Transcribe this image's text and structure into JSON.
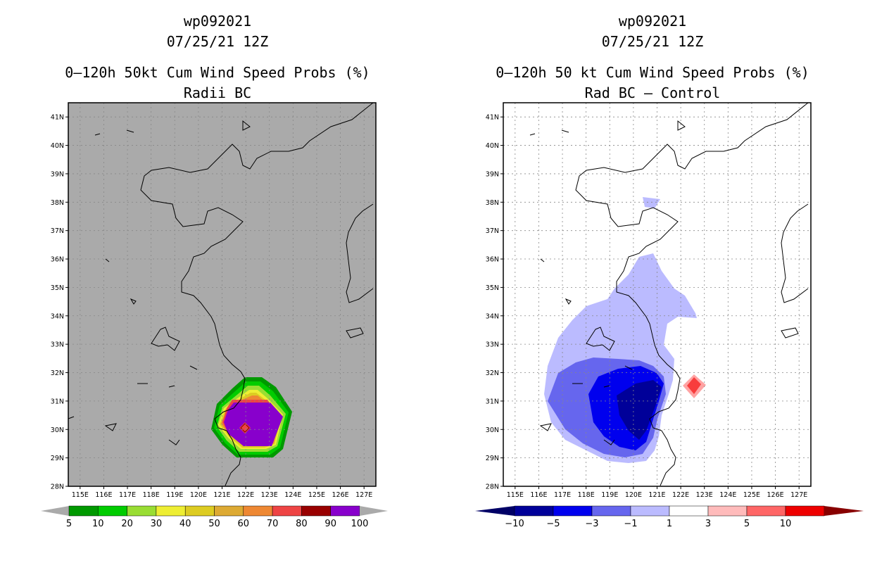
{
  "left_panel": {
    "titles": [
      "wp092021",
      "07/25/21 12Z",
      "0–120h 50kt Cum Wind Speed Probs (%)",
      "Radii BC"
    ],
    "colorbar": {
      "labels": [
        "5",
        "10",
        "20",
        "30",
        "40",
        "50",
        "60",
        "70",
        "80",
        "90",
        "100"
      ],
      "colors": [
        "#009900",
        "#00cc00",
        "#99dd33",
        "#eeee33",
        "#ddcc22",
        "#ddaa33",
        "#ee8833",
        "#ee4444",
        "#990000",
        "#8800cc"
      ],
      "end_color": "#aaaaaa"
    },
    "background_color": "#aaaaaa"
  },
  "right_panel": {
    "titles": [
      "wp092021",
      "07/25/21 12Z",
      "0–120h 50 kt Cum Wind Speed Probs (%)",
      "Rad BC – Control"
    ],
    "colorbar": {
      "labels": [
        "−10",
        "−5",
        "−3",
        "−1",
        "1",
        "3",
        "5",
        "10"
      ],
      "colors": [
        "#000099",
        "#0000ee",
        "#6666ee",
        "#bbbbff",
        "#ffffff",
        "#ffbbbb",
        "#ff6666",
        "#ee0000"
      ],
      "low_end_color": "#000066",
      "high_end_color": "#880000"
    },
    "background_color": "#ffffff"
  },
  "axes": {
    "lat_labels": [
      "41N",
      "40N",
      "39N",
      "38N",
      "37N",
      "36N",
      "35N",
      "34N",
      "33N",
      "32N",
      "31N",
      "30N",
      "29N",
      "28N"
    ],
    "lon_labels": [
      "115E",
      "116E",
      "117E",
      "118E",
      "119E",
      "120E",
      "121E",
      "122E",
      "123E",
      "124E",
      "125E",
      "126E",
      "127E"
    ]
  }
}
